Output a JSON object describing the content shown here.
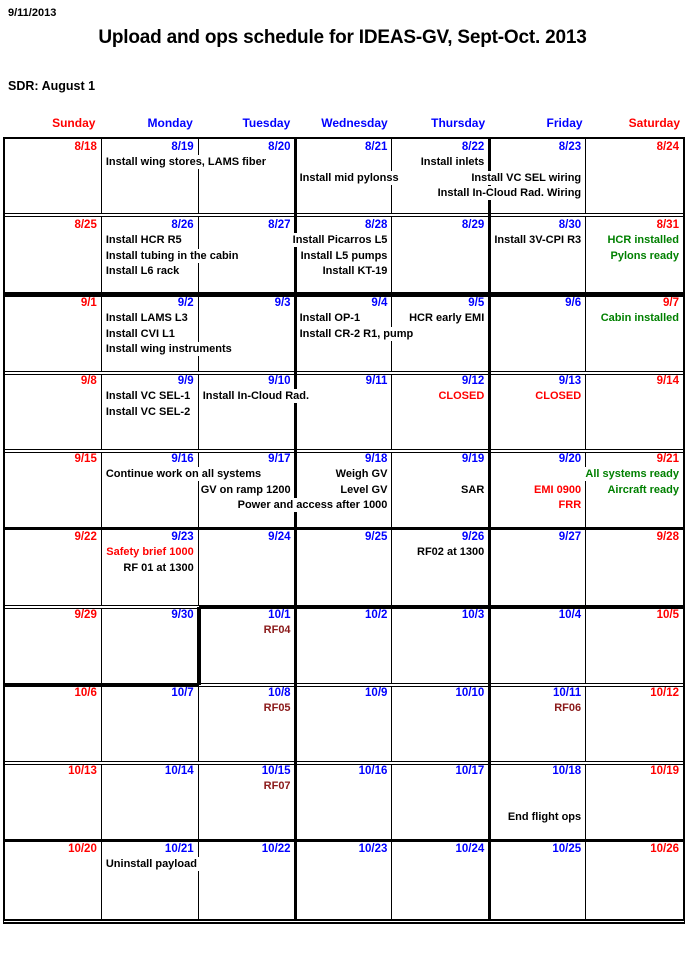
{
  "page": {
    "date_stamp": "9/11/2013",
    "title": "Upload and ops schedule for IDEAS-GV, Sept-Oct. 2013",
    "sdr_note": "SDR: August 1"
  },
  "colors": {
    "weekend_date": "#FF0000",
    "weekday_date": "#0000FF",
    "event_black": "#000000",
    "event_red": "#FF0000",
    "event_green": "#008000",
    "event_dark_red": "#8B1A1A",
    "grid_line": "#000000"
  },
  "day_headers": [
    {
      "label": "Sunday",
      "weekend": true
    },
    {
      "label": "Monday",
      "weekend": false
    },
    {
      "label": "Tuesday",
      "weekend": false
    },
    {
      "label": "Wednesday",
      "weekend": false
    },
    {
      "label": "Thursday",
      "weekend": false
    },
    {
      "label": "Friday",
      "weekend": false
    },
    {
      "label": "Saturday",
      "weekend": true
    }
  ],
  "weeks": [
    {
      "days": [
        {
          "date": "8/18",
          "weekend": true,
          "events": []
        },
        {
          "date": "8/19",
          "weekend": false,
          "events": [
            {
              "text": "Install wing stores, LAMS fiber",
              "line": 1,
              "align": "left",
              "color": "black"
            }
          ]
        },
        {
          "date": "8/20",
          "weekend": false,
          "events": []
        },
        {
          "date": "8/21",
          "weekend": false,
          "events": [
            {
              "text": "Install mid pylonss",
              "line": 2,
              "align": "left",
              "color": "black"
            }
          ]
        },
        {
          "date": "8/22",
          "weekend": false,
          "events": [
            {
              "text": "Install inlets",
              "line": 1,
              "align": "right",
              "color": "black"
            }
          ]
        },
        {
          "date": "8/23",
          "weekend": false,
          "events": [
            {
              "text": "Install VC SEL wiring",
              "line": 2,
              "align": "right",
              "color": "black"
            },
            {
              "text": "Install In-Cloud Rad. Wiring",
              "line": 3,
              "align": "right",
              "color": "black"
            }
          ]
        },
        {
          "date": "8/24",
          "weekend": true,
          "events": []
        }
      ]
    },
    {
      "days": [
        {
          "date": "8/25",
          "weekend": true,
          "events": []
        },
        {
          "date": "8/26",
          "weekend": false,
          "events": [
            {
              "text": "Install HCR R5",
              "line": 1,
              "align": "left",
              "color": "black"
            },
            {
              "text": "Install tubing in the cabin",
              "line": 2,
              "align": "left",
              "color": "black"
            },
            {
              "text": "Install L6 rack",
              "line": 3,
              "align": "left",
              "color": "black"
            }
          ]
        },
        {
          "date": "8/27",
          "weekend": false,
          "events": []
        },
        {
          "date": "8/28",
          "weekend": false,
          "events": [
            {
              "text": "Install Picarros L5",
              "line": 1,
              "align": "right",
              "color": "black"
            },
            {
              "text": "Install L5 pumps",
              "line": 2,
              "align": "right",
              "color": "black"
            },
            {
              "text": "Install KT-19",
              "line": 3,
              "align": "right",
              "color": "black"
            }
          ]
        },
        {
          "date": "8/29",
          "weekend": false,
          "events": []
        },
        {
          "date": "8/30",
          "weekend": false,
          "events": [
            {
              "text": "Install 3V-CPI R3",
              "line": 1,
              "align": "right",
              "color": "black"
            }
          ]
        },
        {
          "date": "8/31",
          "weekend": true,
          "events": [
            {
              "text": "HCR installed",
              "line": 1,
              "align": "right",
              "color": "green"
            },
            {
              "text": "Pylons ready",
              "line": 2,
              "align": "right",
              "color": "green"
            }
          ]
        }
      ]
    },
    {
      "days": [
        {
          "date": "9/1",
          "weekend": true,
          "events": []
        },
        {
          "date": "9/2",
          "weekend": false,
          "events": [
            {
              "text": "Install LAMS L3",
              "line": 1,
              "align": "left",
              "color": "black"
            },
            {
              "text": "Install CVI L1",
              "line": 2,
              "align": "left",
              "color": "black"
            },
            {
              "text": "Install wing instruments",
              "line": 3,
              "align": "left",
              "color": "black"
            }
          ]
        },
        {
          "date": "9/3",
          "weekend": false,
          "events": []
        },
        {
          "date": "9/4",
          "weekend": false,
          "events": [
            {
              "text": "Install OP-1",
              "line": 1,
              "align": "left",
              "color": "black"
            },
            {
              "text": "Install CR-2 R1, pump",
              "line": 2,
              "align": "left",
              "color": "black"
            }
          ]
        },
        {
          "date": "9/5",
          "weekend": false,
          "events": [
            {
              "text": "HCR early EMI",
              "line": 1,
              "align": "right",
              "color": "black"
            }
          ]
        },
        {
          "date": "9/6",
          "weekend": false,
          "events": []
        },
        {
          "date": "9/7",
          "weekend": true,
          "events": [
            {
              "text": "Cabin installed",
              "line": 1,
              "align": "right",
              "color": "green"
            }
          ]
        }
      ]
    },
    {
      "days": [
        {
          "date": "9/8",
          "weekend": true,
          "events": []
        },
        {
          "date": "9/9",
          "weekend": false,
          "events": [
            {
              "text": "Install VC SEL-1",
              "line": 1,
              "align": "left",
              "color": "black"
            },
            {
              "text": "Install VC SEL-2",
              "line": 2,
              "align": "left",
              "color": "black"
            }
          ]
        },
        {
          "date": "9/10",
          "weekend": false,
          "events": [
            {
              "text": "Install In-Cloud Rad.",
              "line": 1,
              "align": "left",
              "color": "black"
            }
          ]
        },
        {
          "date": "9/11",
          "weekend": false,
          "events": []
        },
        {
          "date": "9/12",
          "weekend": false,
          "events": [
            {
              "text": "CLOSED",
              "line": 1,
              "align": "right",
              "color": "red"
            }
          ]
        },
        {
          "date": "9/13",
          "weekend": false,
          "events": [
            {
              "text": "CLOSED",
              "line": 1,
              "align": "right",
              "color": "red"
            }
          ]
        },
        {
          "date": "9/14",
          "weekend": true,
          "events": []
        }
      ]
    },
    {
      "days": [
        {
          "date": "9/15",
          "weekend": true,
          "events": []
        },
        {
          "date": "9/16",
          "weekend": false,
          "events": [
            {
              "text": "Continue work on all systems",
              "line": 1,
              "align": "left",
              "color": "black"
            }
          ]
        },
        {
          "date": "9/17",
          "weekend": false,
          "events": [
            {
              "text": "GV on ramp 1200",
              "line": 2,
              "align": "right",
              "color": "black"
            }
          ]
        },
        {
          "date": "9/18",
          "weekend": false,
          "events": [
            {
              "text": "Weigh GV",
              "line": 1,
              "align": "right",
              "color": "black"
            },
            {
              "text": "Level GV",
              "line": 2,
              "align": "right",
              "color": "black"
            },
            {
              "text": "Power and access after 1000",
              "line": 3,
              "align": "right",
              "color": "black"
            }
          ]
        },
        {
          "date": "9/19",
          "weekend": false,
          "events": [
            {
              "text": "SAR",
              "line": 2,
              "align": "right",
              "color": "black"
            }
          ]
        },
        {
          "date": "9/20",
          "weekend": false,
          "events": [
            {
              "text": "EMI 0900",
              "line": 2,
              "align": "right",
              "color": "red"
            },
            {
              "text": "FRR",
              "line": 3,
              "align": "right",
              "color": "red"
            }
          ]
        },
        {
          "date": "9/21",
          "weekend": true,
          "events": [
            {
              "text": "All systems ready",
              "line": 1,
              "align": "right",
              "color": "green"
            },
            {
              "text": "Aircraft ready",
              "line": 2,
              "align": "right",
              "color": "green"
            }
          ]
        }
      ]
    },
    {
      "days": [
        {
          "date": "9/22",
          "weekend": true,
          "events": []
        },
        {
          "date": "9/23",
          "weekend": false,
          "events": [
            {
              "text": "Safety brief 1000",
              "line": 1,
              "align": "right",
              "color": "red"
            },
            {
              "text": "RF 01 at 1300",
              "line": 2,
              "align": "right",
              "color": "black"
            }
          ]
        },
        {
          "date": "9/24",
          "weekend": false,
          "events": []
        },
        {
          "date": "9/25",
          "weekend": false,
          "events": []
        },
        {
          "date": "9/26",
          "weekend": false,
          "events": [
            {
              "text": "RF02 at 1300",
              "line": 1,
              "align": "right",
              "color": "black"
            }
          ]
        },
        {
          "date": "9/27",
          "weekend": false,
          "events": []
        },
        {
          "date": "9/28",
          "weekend": true,
          "events": []
        }
      ]
    },
    {
      "days": [
        {
          "date": "9/29",
          "weekend": true,
          "events": []
        },
        {
          "date": "9/30",
          "weekend": false,
          "events": []
        },
        {
          "date": "10/1",
          "weekend": false,
          "events": [
            {
              "text": "RF04",
              "line": 1,
              "align": "right",
              "color": "dark_red"
            }
          ]
        },
        {
          "date": "10/2",
          "weekend": false,
          "events": []
        },
        {
          "date": "10/3",
          "weekend": false,
          "events": []
        },
        {
          "date": "10/4",
          "weekend": false,
          "events": []
        },
        {
          "date": "10/5",
          "weekend": true,
          "events": []
        }
      ]
    },
    {
      "days": [
        {
          "date": "10/6",
          "weekend": true,
          "events": []
        },
        {
          "date": "10/7",
          "weekend": false,
          "events": []
        },
        {
          "date": "10/8",
          "weekend": false,
          "events": [
            {
              "text": "RF05",
              "line": 1,
              "align": "right",
              "color": "dark_red"
            }
          ]
        },
        {
          "date": "10/9",
          "weekend": false,
          "events": []
        },
        {
          "date": "10/10",
          "weekend": false,
          "events": []
        },
        {
          "date": "10/11",
          "weekend": false,
          "events": [
            {
              "text": "RF06",
              "line": 1,
              "align": "right",
              "color": "dark_red"
            }
          ]
        },
        {
          "date": "10/12",
          "weekend": true,
          "events": []
        }
      ]
    },
    {
      "days": [
        {
          "date": "10/13",
          "weekend": true,
          "events": []
        },
        {
          "date": "10/14",
          "weekend": false,
          "events": []
        },
        {
          "date": "10/15",
          "weekend": false,
          "events": [
            {
              "text": "RF07",
              "line": 1,
              "align": "right",
              "color": "dark_red"
            }
          ]
        },
        {
          "date": "10/16",
          "weekend": false,
          "events": []
        },
        {
          "date": "10/17",
          "weekend": false,
          "events": []
        },
        {
          "date": "10/18",
          "weekend": false,
          "events": [
            {
              "text": "End flight ops",
              "line": 3,
              "align": "right",
              "color": "black"
            }
          ]
        },
        {
          "date": "10/19",
          "weekend": true,
          "events": []
        }
      ]
    },
    {
      "days": [
        {
          "date": "10/20",
          "weekend": true,
          "events": []
        },
        {
          "date": "10/21",
          "weekend": false,
          "events": [
            {
              "text": "Uninstall payload",
              "line": 1,
              "align": "left",
              "color": "black"
            }
          ]
        },
        {
          "date": "10/22",
          "weekend": false,
          "events": []
        },
        {
          "date": "10/23",
          "weekend": false,
          "events": []
        },
        {
          "date": "10/24",
          "weekend": false,
          "events": []
        },
        {
          "date": "10/25",
          "weekend": false,
          "events": []
        },
        {
          "date": "10/26",
          "weekend": true,
          "events": []
        }
      ]
    }
  ]
}
